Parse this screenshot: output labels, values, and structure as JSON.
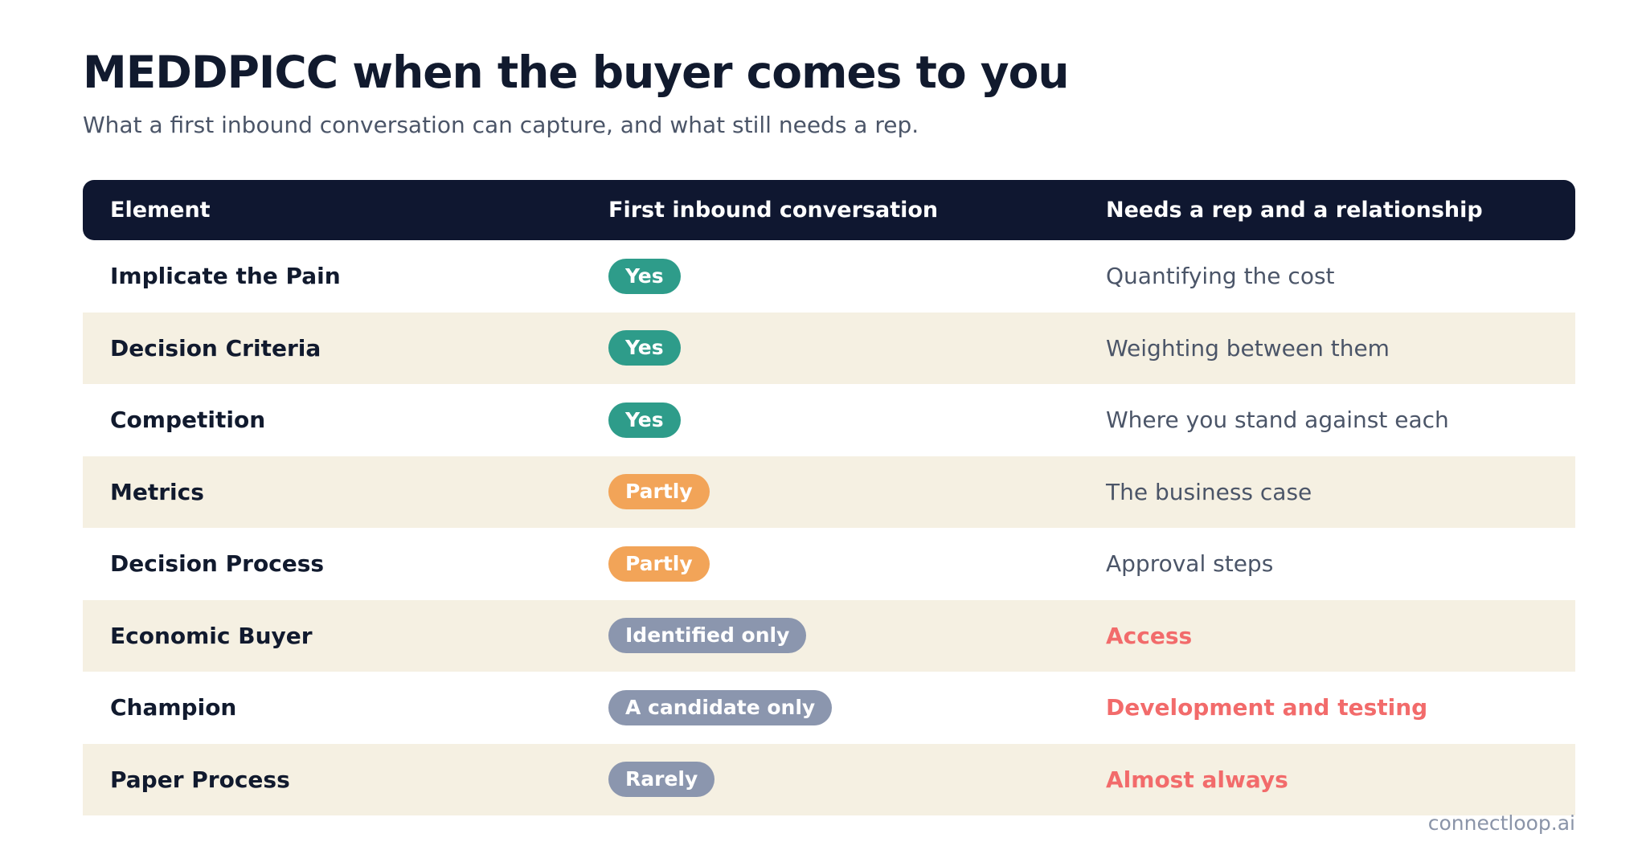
{
  "title": "MEDDPICC when the buyer comes to you",
  "subtitle": "What a first inbound conversation can capture, and what still needs a rep.",
  "columns": [
    "Element",
    "First inbound conversation",
    "Needs a rep and a relationship"
  ],
  "colors": {
    "header_bg": "#0f1730",
    "row_alt_bg": "#f5f0e2",
    "yes": "#2e9c8a",
    "partly": "#f2a458",
    "limited": "#8b96ae",
    "highlight": "#f26b6b"
  },
  "rows": [
    {
      "element": "Implicate the Pain",
      "capture": "Yes",
      "capture_level": "yes",
      "needs": "Quantifying the cost",
      "needs_highlight": false
    },
    {
      "element": "Decision Criteria",
      "capture": "Yes",
      "capture_level": "yes",
      "needs": "Weighting between them",
      "needs_highlight": false
    },
    {
      "element": "Competition",
      "capture": "Yes",
      "capture_level": "yes",
      "needs": "Where you stand against each",
      "needs_highlight": false
    },
    {
      "element": "Metrics",
      "capture": "Partly",
      "capture_level": "partly",
      "needs": "The business case",
      "needs_highlight": false
    },
    {
      "element": "Decision Process",
      "capture": "Partly",
      "capture_level": "partly",
      "needs": "Approval steps",
      "needs_highlight": false
    },
    {
      "element": "Economic Buyer",
      "capture": "Identified only",
      "capture_level": "grey",
      "needs": "Access",
      "needs_highlight": true
    },
    {
      "element": "Champion",
      "capture": "A candidate only",
      "capture_level": "grey",
      "needs": "Development and testing",
      "needs_highlight": true
    },
    {
      "element": "Paper Process",
      "capture": "Rarely",
      "capture_level": "grey",
      "needs": "Almost always",
      "needs_highlight": true
    }
  ],
  "brand": "connectloop.ai"
}
